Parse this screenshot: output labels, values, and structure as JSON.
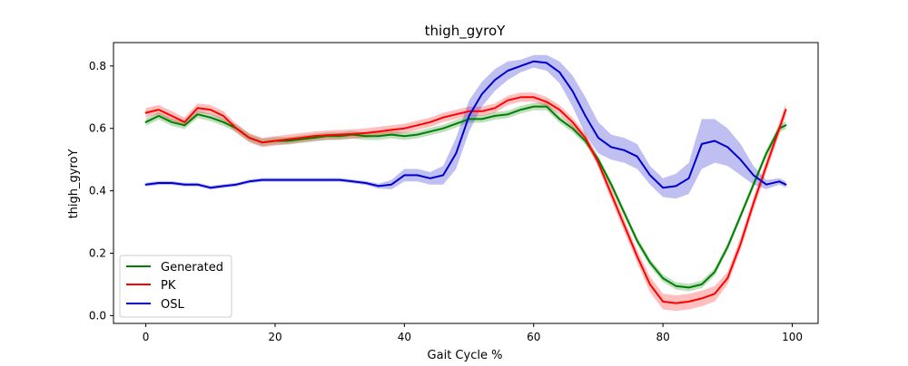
{
  "chart_data": {
    "type": "line",
    "title": "thigh_gyroY",
    "xlabel": "Gait Cycle %",
    "ylabel": "thigh_gyroY",
    "xlim": [
      -5,
      104
    ],
    "ylim": [
      -0.025,
      0.875
    ],
    "xticks": [
      0,
      20,
      40,
      60,
      80,
      100
    ],
    "yticks": [
      0.0,
      0.2,
      0.4,
      0.6,
      0.8
    ],
    "xtick_labels": [
      "0",
      "20",
      "40",
      "60",
      "80",
      "100"
    ],
    "ytick_labels": [
      "0.0",
      "0.2",
      "0.4",
      "0.6",
      "0.8"
    ],
    "grid": false,
    "legend_position": "lower-left",
    "series": [
      {
        "name": "Generated",
        "color": "#008000",
        "x": [
          0,
          2,
          4,
          6,
          8,
          10,
          12,
          14,
          16,
          18,
          20,
          22,
          24,
          26,
          28,
          30,
          32,
          34,
          36,
          38,
          40,
          42,
          44,
          46,
          48,
          50,
          52,
          54,
          56,
          58,
          60,
          62,
          64,
          66,
          68,
          70,
          72,
          74,
          76,
          78,
          80,
          82,
          84,
          86,
          88,
          90,
          92,
          94,
          96,
          98,
          99
        ],
        "values": [
          0.62,
          0.64,
          0.62,
          0.61,
          0.645,
          0.635,
          0.62,
          0.6,
          0.57,
          0.555,
          0.56,
          0.56,
          0.565,
          0.57,
          0.575,
          0.575,
          0.58,
          0.575,
          0.575,
          0.58,
          0.575,
          0.58,
          0.59,
          0.6,
          0.615,
          0.63,
          0.63,
          0.64,
          0.645,
          0.66,
          0.67,
          0.67,
          0.63,
          0.6,
          0.56,
          0.5,
          0.42,
          0.33,
          0.24,
          0.17,
          0.12,
          0.095,
          0.09,
          0.1,
          0.14,
          0.22,
          0.32,
          0.42,
          0.52,
          0.6,
          0.61
        ],
        "band": [
          0.012,
          0.012,
          0.012,
          0.012,
          0.012,
          0.012,
          0.012,
          0.012,
          0.012,
          0.012,
          0.012,
          0.012,
          0.012,
          0.012,
          0.012,
          0.012,
          0.012,
          0.012,
          0.012,
          0.012,
          0.012,
          0.012,
          0.012,
          0.012,
          0.012,
          0.012,
          0.012,
          0.012,
          0.012,
          0.012,
          0.012,
          0.012,
          0.012,
          0.012,
          0.012,
          0.012,
          0.012,
          0.012,
          0.012,
          0.012,
          0.012,
          0.012,
          0.012,
          0.012,
          0.012,
          0.012,
          0.012,
          0.012,
          0.012,
          0.012,
          0.012
        ]
      },
      {
        "name": "PK",
        "color": "#ff0000",
        "x": [
          0,
          2,
          4,
          6,
          8,
          10,
          12,
          14,
          16,
          18,
          20,
          22,
          24,
          26,
          28,
          30,
          32,
          34,
          36,
          38,
          40,
          42,
          44,
          46,
          48,
          50,
          52,
          54,
          56,
          58,
          60,
          62,
          64,
          66,
          68,
          70,
          72,
          74,
          76,
          78,
          80,
          82,
          84,
          86,
          88,
          90,
          92,
          94,
          96,
          98,
          99
        ],
        "values": [
          0.65,
          0.66,
          0.64,
          0.62,
          0.665,
          0.66,
          0.64,
          0.6,
          0.57,
          0.555,
          0.56,
          0.565,
          0.57,
          0.575,
          0.578,
          0.58,
          0.582,
          0.585,
          0.59,
          0.595,
          0.6,
          0.61,
          0.62,
          0.635,
          0.645,
          0.655,
          0.655,
          0.665,
          0.69,
          0.7,
          0.7,
          0.685,
          0.66,
          0.62,
          0.57,
          0.49,
          0.39,
          0.29,
          0.19,
          0.1,
          0.045,
          0.04,
          0.045,
          0.055,
          0.07,
          0.12,
          0.23,
          0.36,
          0.48,
          0.6,
          0.66
        ],
        "band": [
          0.015,
          0.015,
          0.015,
          0.015,
          0.015,
          0.015,
          0.015,
          0.015,
          0.015,
          0.015,
          0.015,
          0.015,
          0.015,
          0.015,
          0.015,
          0.015,
          0.015,
          0.015,
          0.015,
          0.015,
          0.015,
          0.015,
          0.015,
          0.015,
          0.015,
          0.015,
          0.015,
          0.015,
          0.015,
          0.015,
          0.015,
          0.015,
          0.015,
          0.015,
          0.015,
          0.015,
          0.02,
          0.02,
          0.02,
          0.025,
          0.025,
          0.025,
          0.025,
          0.025,
          0.025,
          0.02,
          0.02,
          0.02,
          0.02,
          0.02,
          0.02
        ]
      },
      {
        "name": "OSL",
        "color": "#0000cc",
        "x": [
          0,
          2,
          4,
          6,
          8,
          10,
          12,
          14,
          16,
          18,
          20,
          22,
          24,
          26,
          28,
          30,
          32,
          34,
          36,
          38,
          40,
          42,
          44,
          46,
          48,
          50,
          52,
          54,
          56,
          58,
          60,
          62,
          64,
          66,
          68,
          70,
          72,
          74,
          76,
          78,
          80,
          82,
          84,
          86,
          88,
          90,
          92,
          94,
          96,
          98,
          99
        ],
        "values": [
          0.42,
          0.425,
          0.425,
          0.42,
          0.42,
          0.41,
          0.415,
          0.42,
          0.43,
          0.435,
          0.435,
          0.435,
          0.435,
          0.435,
          0.435,
          0.435,
          0.43,
          0.425,
          0.415,
          0.42,
          0.45,
          0.45,
          0.44,
          0.45,
          0.52,
          0.64,
          0.71,
          0.755,
          0.785,
          0.8,
          0.815,
          0.81,
          0.78,
          0.72,
          0.64,
          0.57,
          0.54,
          0.53,
          0.51,
          0.45,
          0.41,
          0.415,
          0.44,
          0.55,
          0.56,
          0.54,
          0.5,
          0.45,
          0.42,
          0.43,
          0.42
        ],
        "band": [
          0.006,
          0.006,
          0.006,
          0.006,
          0.006,
          0.006,
          0.006,
          0.006,
          0.006,
          0.006,
          0.006,
          0.006,
          0.006,
          0.006,
          0.006,
          0.006,
          0.006,
          0.006,
          0.008,
          0.015,
          0.02,
          0.02,
          0.02,
          0.03,
          0.05,
          0.05,
          0.04,
          0.035,
          0.03,
          0.02,
          0.02,
          0.025,
          0.035,
          0.05,
          0.06,
          0.05,
          0.04,
          0.04,
          0.04,
          0.03,
          0.03,
          0.04,
          0.05,
          0.08,
          0.07,
          0.06,
          0.05,
          0.03,
          0.015,
          0.01,
          0.01
        ]
      }
    ]
  }
}
